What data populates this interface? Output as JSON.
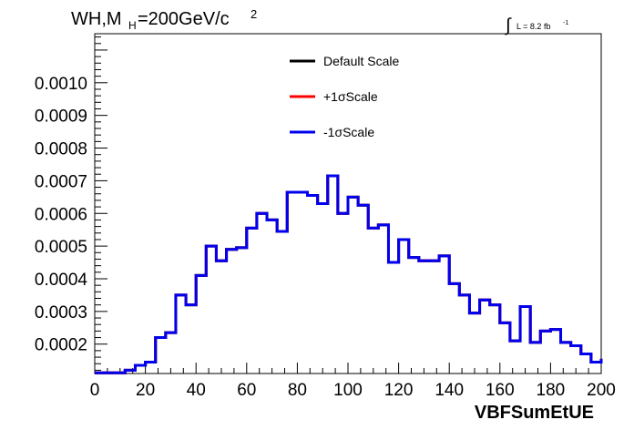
{
  "chart_data": {
    "type": "line",
    "title": {
      "main": "WH,M",
      "sub": "H",
      "rest": "=200GeV/c",
      "sup": "2"
    },
    "luminosity": {
      "integral": "∫",
      "text": "L = 8.2 fb",
      "sup": "-1"
    },
    "xlabel": "VBFSumEtUE",
    "ylabel": "",
    "xlim": [
      0,
      200
    ],
    "ylim": [
      0.00011,
      0.00115
    ],
    "xticks": [
      0,
      20,
      40,
      60,
      80,
      100,
      120,
      140,
      160,
      180,
      200
    ],
    "xtick_labels": [
      "0",
      "20",
      "40",
      "60",
      "80",
      "100",
      "120",
      "140",
      "160",
      "180",
      "200"
    ],
    "yticks": [
      0.0002,
      0.0003,
      0.0004,
      0.0005,
      0.0006,
      0.0007,
      0.0008,
      0.0009,
      0.001
    ],
    "ytick_labels": [
      "0.0002",
      "0.0003",
      "0.0004",
      "0.0005",
      "0.0006",
      "0.0007",
      "0.0008",
      "0.0009",
      "0.0010"
    ],
    "grid": false,
    "legend_position": "top-center",
    "bin_edges": [
      0,
      12,
      16,
      20,
      24,
      28,
      32,
      36,
      40,
      44,
      48,
      52,
      56,
      60,
      64,
      68,
      72,
      76,
      80,
      84,
      88,
      92,
      96,
      100,
      104,
      108,
      112,
      116,
      120,
      124,
      128,
      132,
      136,
      140,
      144,
      148,
      152,
      156,
      160,
      164,
      168,
      172,
      176,
      180,
      184,
      188,
      192,
      196,
      200
    ],
    "series": [
      {
        "name": "Default Scale",
        "color": "#000000",
        "values": [
          0.000112,
          0.00012,
          0.000135,
          0.000145,
          0.00022,
          0.000235,
          0.00035,
          0.00032,
          0.00041,
          0.0005,
          0.000455,
          0.00049,
          0.000495,
          0.000555,
          0.0006,
          0.00058,
          0.000545,
          0.000665,
          0.000665,
          0.000655,
          0.00063,
          0.000715,
          0.0006,
          0.00065,
          0.000625,
          0.000555,
          0.000565,
          0.00045,
          0.00052,
          0.000465,
          0.000455,
          0.000455,
          0.00047,
          0.000385,
          0.00035,
          0.000295,
          0.000335,
          0.00032,
          0.000265,
          0.00021,
          0.000315,
          0.000205,
          0.00024,
          0.000245,
          0.000205,
          0.000195,
          0.00017,
          0.000145,
          0.000155
        ]
      },
      {
        "name": "+1σScale",
        "color": "#ff0000",
        "values": [
          0.000112,
          0.00012,
          0.000135,
          0.000145,
          0.00022,
          0.000235,
          0.00035,
          0.00032,
          0.00041,
          0.0005,
          0.000455,
          0.00049,
          0.000495,
          0.000555,
          0.0006,
          0.00058,
          0.000545,
          0.000665,
          0.000665,
          0.000655,
          0.00063,
          0.000715,
          0.0006,
          0.00065,
          0.000625,
          0.000555,
          0.000565,
          0.00045,
          0.00052,
          0.000465,
          0.000455,
          0.000455,
          0.00047,
          0.000385,
          0.00035,
          0.000295,
          0.000335,
          0.00032,
          0.000265,
          0.00021,
          0.000315,
          0.000205,
          0.00024,
          0.000245,
          0.000205,
          0.000195,
          0.00017,
          0.000145,
          0.000155
        ]
      },
      {
        "name": "-1σScale",
        "color": "#0000ee",
        "values": [
          0.000112,
          0.00012,
          0.000135,
          0.000145,
          0.00022,
          0.000235,
          0.00035,
          0.00032,
          0.00041,
          0.0005,
          0.000455,
          0.00049,
          0.000495,
          0.000555,
          0.0006,
          0.00058,
          0.000545,
          0.000665,
          0.000665,
          0.000655,
          0.00063,
          0.000715,
          0.0006,
          0.00065,
          0.000625,
          0.000555,
          0.000565,
          0.00045,
          0.00052,
          0.000465,
          0.000455,
          0.000455,
          0.00047,
          0.000385,
          0.00035,
          0.000295,
          0.000335,
          0.00032,
          0.000265,
          0.00021,
          0.000315,
          0.000205,
          0.00024,
          0.000245,
          0.000205,
          0.000195,
          0.00017,
          0.000145,
          0.000155
        ]
      }
    ]
  }
}
